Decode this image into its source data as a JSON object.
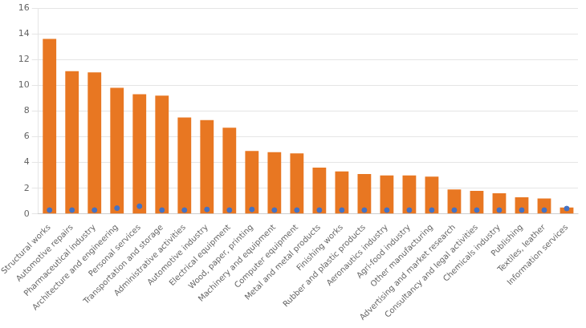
{
  "chart_data": {
    "type": "bar",
    "categories": [
      "Structural works",
      "Automotive repairs",
      "Pharmaceutical industry",
      "Architecture and engineering",
      "Personal services",
      "Transportation and storage",
      "Administrative activities",
      "Automotive industry",
      "Electrical equipment",
      "Wood, paper, printing",
      "Machinery and equipment",
      "Computer equipment",
      "Metal and metal products",
      "Finishing works",
      "Rubber and plastic products",
      "Aeronautics industry",
      "Agri-food industry",
      "Other manufacturing",
      "Advertising and market research",
      "Consultancy and legal activities",
      "Chemicals industry",
      "Publishing",
      "Textiles, leather",
      "Information services"
    ],
    "series": [
      {
        "type": "bar",
        "color": "#E87722",
        "values": [
          13.6,
          11.1,
          11.0,
          9.8,
          9.3,
          9.2,
          7.5,
          7.3,
          6.7,
          4.9,
          4.8,
          4.7,
          3.6,
          3.3,
          3.1,
          3.0,
          3.0,
          2.9,
          1.9,
          1.8,
          1.6,
          1.3,
          1.2,
          0.5
        ]
      },
      {
        "type": "scatter",
        "color": "#4472C4",
        "marker": "circle",
        "values": [
          0.3,
          0.3,
          0.3,
          0.45,
          0.6,
          0.3,
          0.3,
          0.35,
          0.3,
          0.35,
          0.3,
          0.3,
          0.3,
          0.3,
          0.3,
          0.3,
          0.3,
          0.3,
          0.3,
          0.3,
          0.3,
          0.3,
          0.3,
          0.42
        ]
      }
    ],
    "ylim": [
      0,
      16
    ],
    "yticks": [
      0,
      2,
      4,
      6,
      8,
      10,
      12,
      14,
      16
    ],
    "grid": "y"
  }
}
